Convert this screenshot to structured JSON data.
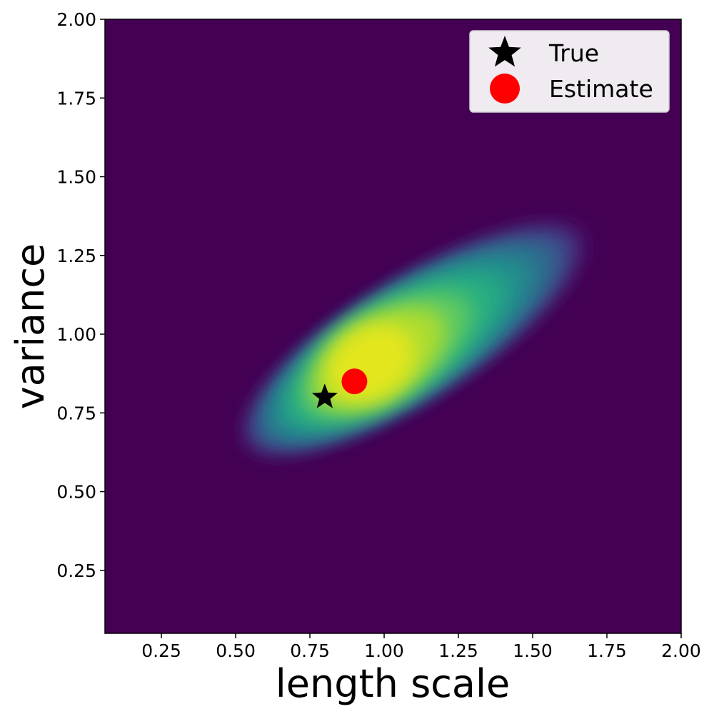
{
  "chart_data": {
    "type": "heatmap",
    "xlabel": "length scale",
    "ylabel": "variance",
    "xlim": [
      0.06,
      2.0
    ],
    "ylim": [
      0.05,
      2.0
    ],
    "xticks": [
      "0.25",
      "0.50",
      "0.75",
      "1.00",
      "1.25",
      "1.50",
      "1.75",
      "2.00"
    ],
    "yticks": [
      "0.25",
      "0.50",
      "0.75",
      "1.00",
      "1.25",
      "1.50",
      "1.75",
      "2.00"
    ],
    "grid": false,
    "legend_position": "top-right",
    "colormap": "viridis",
    "background_color": "#440154",
    "density": {
      "mode_x": 0.92,
      "mode_y": 0.89,
      "orientation_deg": 32,
      "x_extent": [
        0.52,
        1.68
      ],
      "y_extent": [
        0.6,
        1.37
      ]
    },
    "points": [
      {
        "name": "True",
        "x": 0.8,
        "y": 0.8,
        "marker": "star",
        "color": "#000000"
      },
      {
        "name": "Estimate",
        "x": 0.9,
        "y": 0.85,
        "marker": "circle",
        "color": "#ff0000"
      }
    ],
    "legend": [
      {
        "label": "True",
        "marker": "star",
        "color": "#000000"
      },
      {
        "label": "Estimate",
        "marker": "circle",
        "color": "#ff0000"
      }
    ]
  }
}
